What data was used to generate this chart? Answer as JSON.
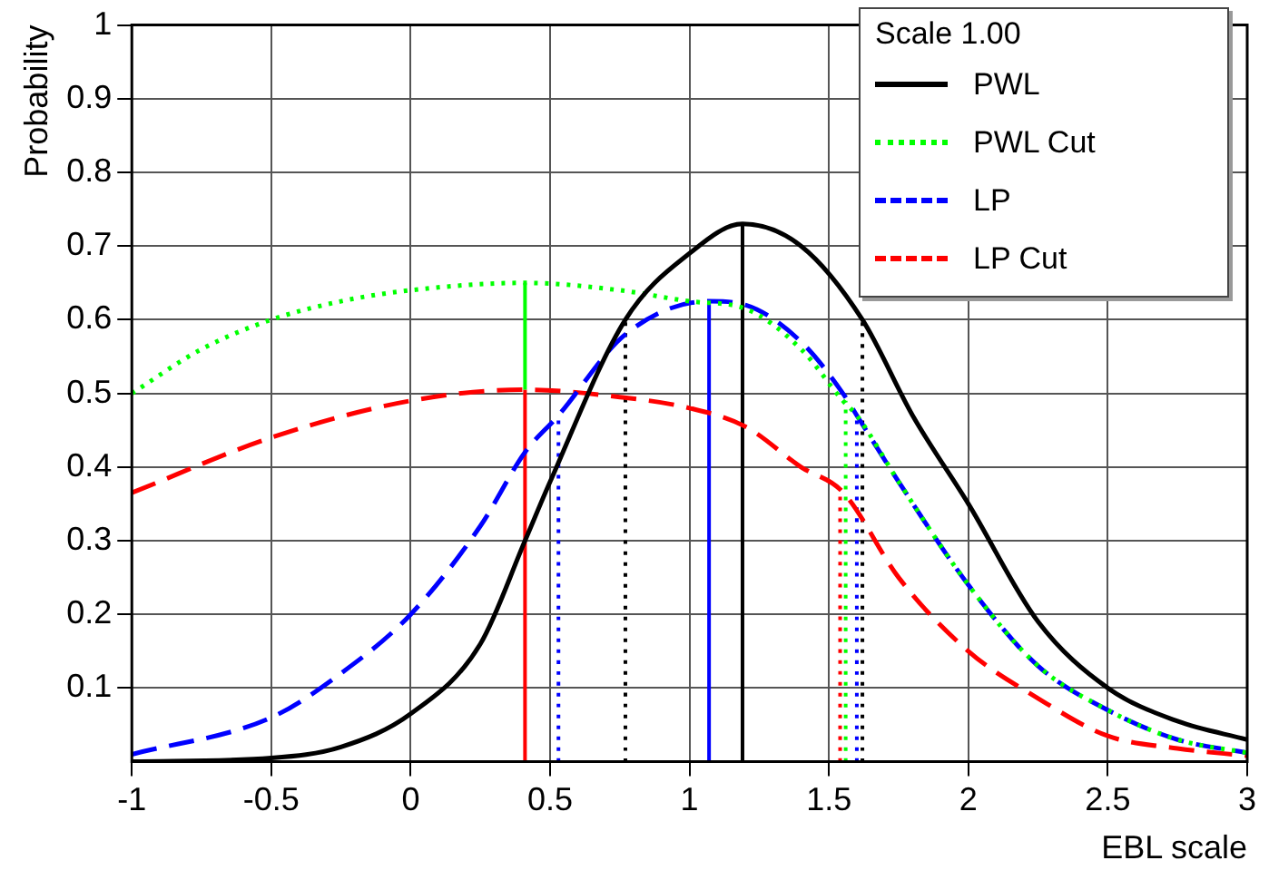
{
  "chart_data": {
    "type": "line",
    "xlabel": "EBL scale",
    "ylabel": "Probability",
    "legend_title": "Scale 1.00",
    "legend": "top right",
    "grid": true,
    "marker": "none",
    "xlim": [
      -1,
      3
    ],
    "xticks": [
      -1,
      -0.5,
      0,
      0.5,
      1,
      1.5,
      2,
      2.5,
      3
    ],
    "ylim": [
      0,
      1
    ],
    "yticks": [
      0.1,
      0.2,
      0.3,
      0.4,
      0.5,
      0.6,
      0.7,
      0.8,
      0.9,
      1
    ],
    "series": [
      {
        "name": "PWL",
        "color": "#000000",
        "line_style": "solid",
        "x": [
          -1,
          -0.5,
          -0.25,
          0,
          0.25,
          0.41,
          0.5,
          0.77,
          1.0,
          1.19,
          1.4,
          1.62,
          1.8,
          2.0,
          2.25,
          2.5,
          2.75,
          3.0
        ],
        "values": [
          0,
          0.005,
          0.02,
          0.065,
          0.16,
          0.3,
          0.38,
          0.6,
          0.69,
          0.73,
          0.7,
          0.6,
          0.47,
          0.35,
          0.19,
          0.1,
          0.055,
          0.03
        ]
      },
      {
        "name": "PWL Cut",
        "color": "#00ff00",
        "line_style": "dotted",
        "x": [
          -1,
          -0.75,
          -0.5,
          -0.25,
          0,
          0.41,
          0.75,
          1.0,
          1.2,
          1.4,
          1.55,
          1.6,
          1.75,
          2.0,
          2.25,
          2.5,
          2.75,
          3.0
        ],
        "values": [
          0.5,
          0.56,
          0.6,
          0.625,
          0.64,
          0.65,
          0.64,
          0.625,
          0.615,
          0.56,
          0.49,
          0.47,
          0.38,
          0.24,
          0.13,
          0.07,
          0.03,
          0.012
        ]
      },
      {
        "name": "LP",
        "color": "#0000ff",
        "line_style": "dashed",
        "x": [
          -1,
          -0.5,
          -0.25,
          0,
          0.25,
          0.41,
          0.53,
          0.77,
          1.07,
          1.2,
          1.4,
          1.55,
          1.6,
          1.75,
          2.0,
          2.25,
          2.5,
          2.75,
          3.0
        ],
        "values": [
          0.01,
          0.06,
          0.12,
          0.2,
          0.32,
          0.42,
          0.47,
          0.58,
          0.625,
          0.62,
          0.57,
          0.5,
          0.47,
          0.38,
          0.24,
          0.13,
          0.07,
          0.03,
          0.012
        ]
      },
      {
        "name": "LP Cut",
        "color": "#ff0000",
        "line_style": "dashed",
        "x": [
          -1,
          -0.5,
          0,
          0.41,
          0.75,
          1.0,
          1.2,
          1.4,
          1.55,
          1.75,
          2.0,
          2.25,
          2.5,
          2.75,
          3.0
        ],
        "values": [
          0.365,
          0.44,
          0.49,
          0.505,
          0.495,
          0.48,
          0.455,
          0.4,
          0.366,
          0.25,
          0.15,
          0.086,
          0.035,
          0.018,
          0.008
        ]
      },
      {
        "color": "#000000",
        "line_style": "solid",
        "x": [
          1.19,
          1.19
        ],
        "values": [
          0,
          0.73
        ]
      },
      {
        "color": "#000000",
        "line_style": "dotted",
        "x": [
          0.77,
          0.77
        ],
        "values": [
          0,
          0.6
        ]
      },
      {
        "color": "#000000",
        "line_style": "dotted",
        "x": [
          1.62,
          1.62
        ],
        "values": [
          0,
          0.6
        ]
      },
      {
        "color": "#00ff00",
        "line_style": "solid",
        "x": [
          0.41,
          0.41
        ],
        "values": [
          0.505,
          0.65
        ]
      },
      {
        "color": "#00ff00",
        "line_style": "dotted",
        "x": [
          1.56,
          1.56
        ],
        "values": [
          0,
          0.49
        ]
      },
      {
        "color": "#0000ff",
        "line_style": "solid",
        "x": [
          1.07,
          1.07
        ],
        "values": [
          0,
          0.625
        ]
      },
      {
        "color": "#0000ff",
        "line_style": "dotted",
        "x": [
          0.53,
          0.53
        ],
        "values": [
          0,
          0.47
        ]
      },
      {
        "color": "#0000ff",
        "line_style": "dotted",
        "x": [
          1.6,
          1.6
        ],
        "values": [
          0,
          0.47
        ]
      },
      {
        "color": "#ff0000",
        "line_style": "solid",
        "x": [
          0.41,
          0.41
        ],
        "values": [
          0,
          0.505
        ]
      },
      {
        "color": "#ff0000",
        "line_style": "dotted",
        "x": [
          1.54,
          1.54
        ],
        "values": [
          0,
          0.37
        ]
      }
    ]
  }
}
